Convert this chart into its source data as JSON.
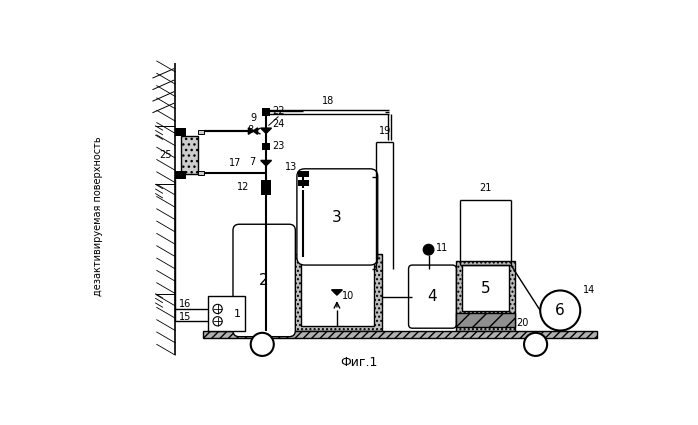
{
  "title": "Фиг.1",
  "vertical_label": "дезактивируемая поверхность",
  "bg_color": "#ffffff",
  "fig_width": 6.98,
  "fig_height": 4.25,
  "dpi": 100
}
